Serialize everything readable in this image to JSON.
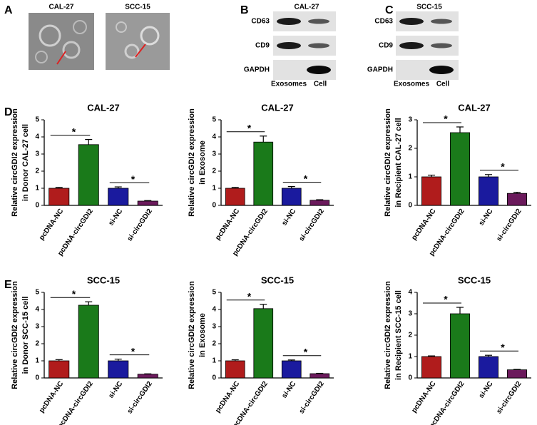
{
  "panel_labels": [
    "A",
    "B",
    "C",
    "D",
    "E"
  ],
  "images": [
    "CAL-27",
    "SCC-15"
  ],
  "blots": [
    {
      "title": "CAL-27",
      "rows": [
        "CD63",
        "CD9",
        "GAPDH"
      ],
      "lanes": [
        "Exosomes",
        "Cell"
      ]
    },
    {
      "title": "SCC-15",
      "rows": [
        "CD63",
        "CD9",
        "GAPDH"
      ],
      "lanes": [
        "Exosomes",
        "Cell"
      ]
    }
  ],
  "chart_data": [
    {
      "type": "bar",
      "title": "CAL-27",
      "ylabel": [
        "Relative circGDI2 expression",
        "in  Donor CAL-27 cell"
      ],
      "categories": [
        "pcDNA-NC",
        "pcDNA-circGDI2",
        "si-NC",
        "si-circGDI2"
      ],
      "values": [
        1.0,
        3.55,
        1.0,
        0.25
      ],
      "errors": [
        0.05,
        0.3,
        0.08,
        0.03
      ],
      "colors": [
        "#b01c1c",
        "#1a7a1a",
        "#1a1a9e",
        "#6b1a5c"
      ],
      "ylim": [
        0,
        5
      ],
      "yticks": [
        0,
        1,
        2,
        3,
        4,
        5
      ],
      "significance": [
        "*",
        "*"
      ]
    },
    {
      "type": "bar",
      "title": "CAL-27",
      "ylabel": [
        "Relative circGDI2 expression",
        "in   Exosome"
      ],
      "categories": [
        "pcDNA-NC",
        "pcDNA-circGDI2",
        "si-NC",
        "si-circGDI2"
      ],
      "values": [
        1.0,
        3.7,
        1.0,
        0.3
      ],
      "errors": [
        0.05,
        0.35,
        0.1,
        0.03
      ],
      "colors": [
        "#b01c1c",
        "#1a7a1a",
        "#1a1a9e",
        "#6b1a5c"
      ],
      "ylim": [
        0,
        5
      ],
      "yticks": [
        0,
        1,
        2,
        3,
        4,
        5
      ],
      "significance": [
        "*",
        "*"
      ]
    },
    {
      "type": "bar",
      "title": "CAL-27",
      "ylabel": [
        "Relative circGDI2 expression",
        "in  Recipient CAL-27 cell"
      ],
      "categories": [
        "pcDNA-NC",
        "pcDNA-circGDI2",
        "si-NC",
        "si-circGDI2"
      ],
      "values": [
        1.0,
        2.55,
        1.0,
        0.42
      ],
      "errors": [
        0.06,
        0.2,
        0.08,
        0.04
      ],
      "colors": [
        "#b01c1c",
        "#1a7a1a",
        "#1a1a9e",
        "#6b1a5c"
      ],
      "ylim": [
        0,
        3
      ],
      "yticks": [
        0,
        1,
        2,
        3
      ],
      "significance": [
        "*",
        "*"
      ]
    },
    {
      "type": "bar",
      "title": "SCC-15",
      "ylabel": [
        "Relative circGDI2 expression",
        "in  Donor SCC-15 cell"
      ],
      "categories": [
        "pcDNA-NC",
        "pcDNA-circGDI2",
        "si-NC",
        "si-circGDI2"
      ],
      "values": [
        1.0,
        4.25,
        1.0,
        0.22
      ],
      "errors": [
        0.07,
        0.2,
        0.1,
        0.02
      ],
      "colors": [
        "#b01c1c",
        "#1a7a1a",
        "#1a1a9e",
        "#6b1a5c"
      ],
      "ylim": [
        0,
        5
      ],
      "yticks": [
        0,
        1,
        2,
        3,
        4,
        5
      ],
      "significance": [
        "*",
        "*"
      ]
    },
    {
      "type": "bar",
      "title": "SCC-15",
      "ylabel": [
        "Relative circGDI2 expression",
        "in   Exosome"
      ],
      "categories": [
        "pcDNA-NC",
        "pcDNA-circGDI2",
        "si-NC",
        "si-circGDI2"
      ],
      "values": [
        1.0,
        4.05,
        1.0,
        0.25
      ],
      "errors": [
        0.06,
        0.25,
        0.05,
        0.02
      ],
      "colors": [
        "#b01c1c",
        "#1a7a1a",
        "#1a1a9e",
        "#6b1a5c"
      ],
      "ylim": [
        0,
        5
      ],
      "yticks": [
        0,
        1,
        2,
        3,
        4,
        5
      ],
      "significance": [
        "*",
        "*"
      ]
    },
    {
      "type": "bar",
      "title": "SCC-15",
      "ylabel": [
        "Relative circGDI2 expression",
        "in  Recipient SCC-15 cell"
      ],
      "categories": [
        "pcDNA-NC",
        "pcDNA-circGDI2",
        "si-NC",
        "si-circGDI2"
      ],
      "values": [
        1.0,
        3.0,
        1.0,
        0.38
      ],
      "errors": [
        0.03,
        0.3,
        0.06,
        0.02
      ],
      "colors": [
        "#b01c1c",
        "#1a7a1a",
        "#1a1a9e",
        "#6b1a5c"
      ],
      "ylim": [
        0,
        4
      ],
      "yticks": [
        0,
        1,
        2,
        3,
        4
      ],
      "significance": [
        "*",
        "*"
      ]
    }
  ]
}
